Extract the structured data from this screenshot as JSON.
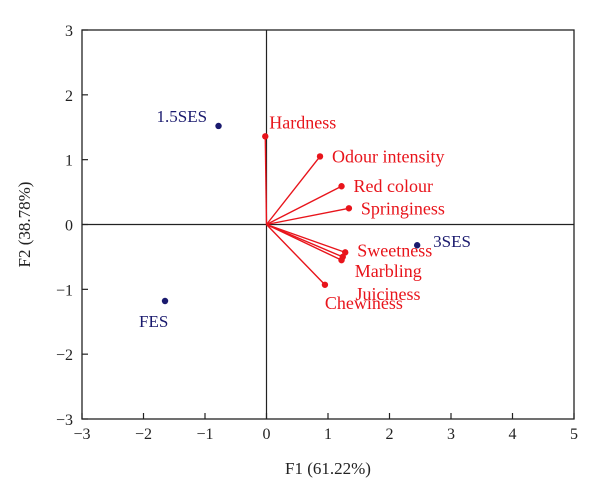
{
  "chart_data": {
    "type": "scatter",
    "title": "",
    "xlabel": "F1 (61.22%)",
    "ylabel": "F2 (38.78%)",
    "xlim": [
      -3,
      5
    ],
    "ylim": [
      -3,
      3
    ],
    "xticks": [
      "−3",
      "−2",
      "−1",
      "0",
      "1",
      "2",
      "3",
      "4",
      "5"
    ],
    "yticks": [
      "3",
      "2",
      "1",
      "0",
      "−1",
      "−2",
      "−3"
    ],
    "grid": false,
    "variables": {
      "color": "#e8141b",
      "points": [
        {
          "label": "Hardness",
          "x": -0.02,
          "y": 1.36
        },
        {
          "label": "Odour intensity",
          "x": 0.87,
          "y": 1.05
        },
        {
          "label": "Red colour",
          "x": 1.22,
          "y": 0.59
        },
        {
          "label": "Springiness",
          "x": 1.34,
          "y": 0.25
        },
        {
          "label": "Sweetness",
          "x": 1.28,
          "y": -0.43
        },
        {
          "label": "Marbling",
          "x": 1.24,
          "y": -0.5
        },
        {
          "label": "Juiciness",
          "x": 1.22,
          "y": -0.55
        },
        {
          "label": "Chewiness",
          "x": 0.95,
          "y": -0.93
        }
      ]
    },
    "observations": {
      "color": "#1a1a6e",
      "points": [
        {
          "label": "1.5SES",
          "x": -0.78,
          "y": 1.52
        },
        {
          "label": "3SES",
          "x": 2.45,
          "y": -0.32
        },
        {
          "label": "FES",
          "x": -1.65,
          "y": -1.18
        }
      ]
    },
    "frame_color": "#222222",
    "axis_line_color": "#222222"
  }
}
